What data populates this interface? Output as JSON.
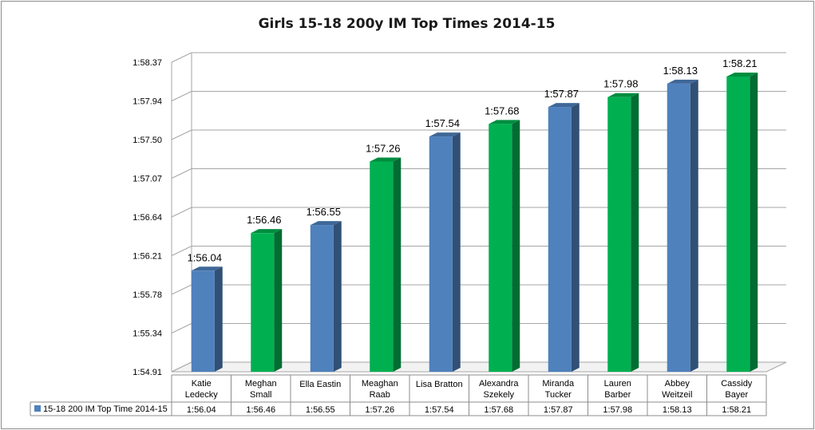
{
  "chart_data": {
    "type": "bar",
    "title": "Girls 15-18 200y IM Top Times 2014-15",
    "categories": [
      [
        "Katie",
        "Ledecky"
      ],
      [
        "Meghan",
        "Small"
      ],
      [
        "Ella Eastin"
      ],
      [
        "Meaghan",
        "Raab"
      ],
      [
        "Lisa Bratton"
      ],
      [
        "Alexandra",
        "Szekely"
      ],
      [
        "Miranda",
        "Tucker"
      ],
      [
        "Lauren",
        "Barber"
      ],
      [
        "Abbey",
        "Weitzeil"
      ],
      [
        "Cassidy",
        "Bayer"
      ]
    ],
    "series": [
      {
        "name": "15-18 200 IM Top Time 2014-15",
        "values": [
          116.04,
          116.46,
          116.55,
          117.26,
          117.54,
          117.68,
          117.87,
          117.98,
          118.13,
          118.21
        ],
        "labels": [
          "1:56.04",
          "1:56.46",
          "1:56.55",
          "1:57.26",
          "1:57.54",
          "1:57.68",
          "1:57.87",
          "1:57.98",
          "1:58.13",
          "1:58.21"
        ]
      }
    ],
    "bar_colors": [
      "blue",
      "green",
      "blue",
      "green",
      "blue",
      "green",
      "blue",
      "green",
      "blue",
      "green"
    ],
    "colors": {
      "blue": "#4f81bd",
      "green": "#00b050",
      "grid": "#a6a6a6"
    },
    "ylim": [
      114.91,
      118.37
    ],
    "yticks": [
      "1:54.91",
      "1:55.34",
      "1:55.78",
      "1:56.21",
      "1:56.64",
      "1:57.07",
      "1:57.50",
      "1:57.94",
      "1:58.37"
    ],
    "data_table": true,
    "grid": true,
    "style": "3d-column"
  }
}
